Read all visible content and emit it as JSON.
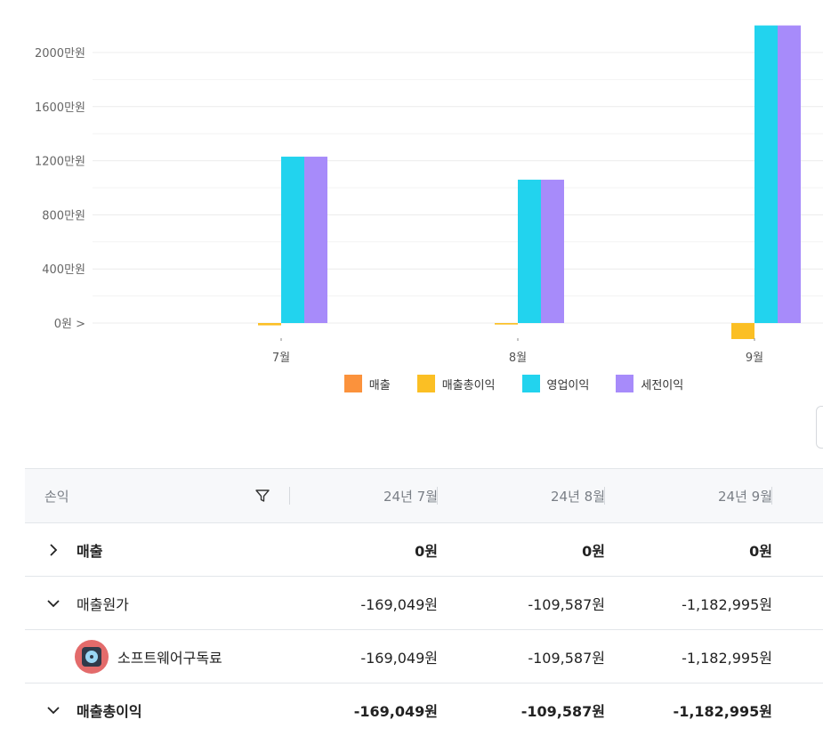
{
  "chart_data": {
    "type": "bar",
    "categories": [
      "7월",
      "8월",
      "9월"
    ],
    "series": [
      {
        "name": "매출",
        "color": "#fb923c",
        "values": [
          0,
          0,
          0
        ]
      },
      {
        "name": "매출총이익",
        "color": "#fbbf24",
        "values": [
          -169049,
          -109587,
          -1182995
        ]
      },
      {
        "name": "영업이익",
        "color": "#22d3ee",
        "values": [
          12300000,
          10600000,
          22000000
        ]
      },
      {
        "name": "세전이익",
        "color": "#a78bfa",
        "values": [
          12300000,
          10600000,
          22000000
        ]
      }
    ],
    "y_ticks": [
      {
        "value": 0,
        "label": "0원 >"
      },
      {
        "value": 4000000,
        "label": "400만원"
      },
      {
        "value": 8000000,
        "label": "800만원"
      },
      {
        "value": 12000000,
        "label": "1200만원"
      },
      {
        "value": 16000000,
        "label": "1600만원"
      },
      {
        "value": 20000000,
        "label": "2000만원"
      }
    ],
    "ylim": [
      -1200000,
      22000000
    ],
    "grid": true,
    "legend_position": "bottom"
  },
  "table": {
    "header": {
      "first": "손익",
      "months": [
        "24년 7월",
        "24년 8월",
        "24년 9월"
      ]
    },
    "rows": [
      {
        "label": "매출",
        "values": [
          "0원",
          "0원",
          "0원"
        ]
      },
      {
        "label": "매출원가",
        "values": [
          "-169,049원",
          "-109,587원",
          "-1,182,995원"
        ]
      },
      {
        "label": "소프트웨어구독료",
        "values": [
          "-169,049원",
          "-109,587원",
          "-1,182,995원"
        ]
      },
      {
        "label": "매출총이익",
        "values": [
          "-169,049원",
          "-109,587원",
          "-1,182,995원"
        ]
      }
    ]
  },
  "icons": {
    "filter": "filter-icon",
    "expand": "chevron-right-icon",
    "collapse": "chevron-down-icon",
    "software": "disc-icon"
  }
}
